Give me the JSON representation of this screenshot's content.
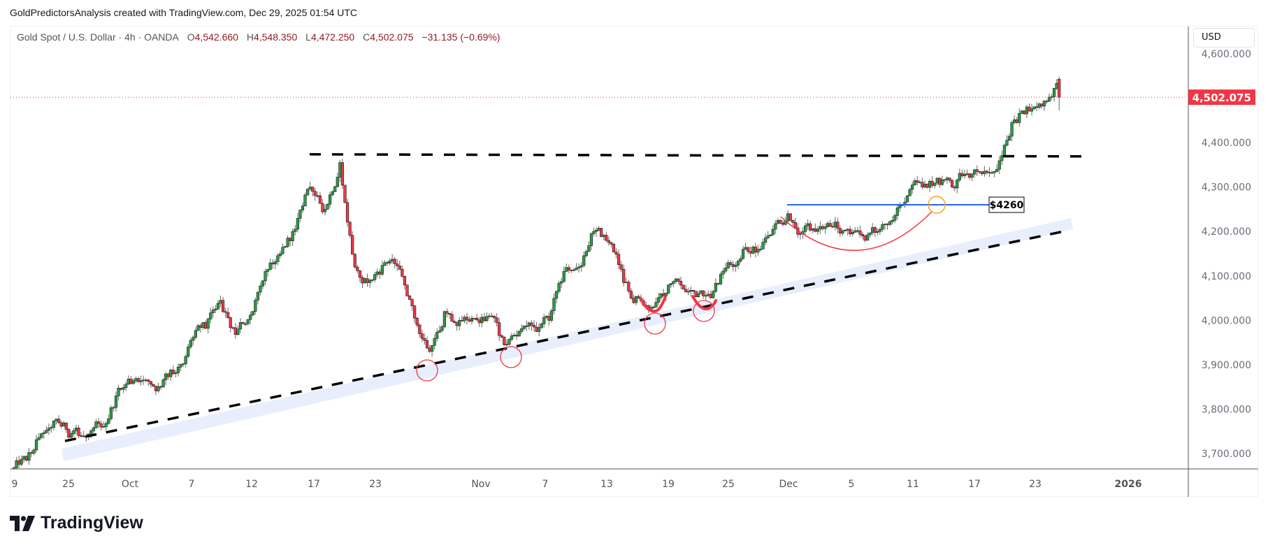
{
  "credit": "GoldPredictorsAnalysis created with TradingView.com, Dec 29, 2025 01:54 UTC",
  "legend": {
    "symbol": "Gold Spot / U.S. Dollar · 4h · OANDA",
    "o_label": "O",
    "open": "4,542.660",
    "h_label": "H",
    "high": "4,548.350",
    "l_label": "L",
    "low": "4,472.250",
    "c_label": "C",
    "close": "4,502.075",
    "change": "−31.135 (−0.69%)"
  },
  "currency": "USD",
  "brand": "TradingView",
  "colors": {
    "up": "#2a9d45",
    "down": "#f23645",
    "price_label": "#f23645",
    "level_line": "#2962ff",
    "circle": "#f23645",
    "breakout_circle": "#f5a623",
    "trend_band": "#e8eefc"
  },
  "chart_data": {
    "type": "candlestick",
    "timeframe": "4h",
    "ylim": [
      3660,
      4620
    ],
    "y_ticks": [
      "4,600.000",
      "4,400.000",
      "4,300.000",
      "4,200.000",
      "4,100.000",
      "4,000.000",
      "3,900.000",
      "3,800.000",
      "3,700.000"
    ],
    "x_ticks": [
      "9",
      "25",
      "Oct",
      "7",
      "12",
      "17",
      "23",
      "Nov",
      "7",
      "13",
      "19",
      "25",
      "Dec",
      "5",
      "11",
      "17",
      "23",
      "2026"
    ],
    "current_price": 4502.075,
    "current_price_label": "4,502.075",
    "daily_closes": [
      [
        "2025-09-19",
        3685
      ],
      [
        "2025-09-22",
        3745
      ],
      [
        "2025-09-23",
        3778
      ],
      [
        "2025-09-24",
        3745
      ],
      [
        "2025-09-25",
        3738
      ],
      [
        "2025-09-26",
        3760
      ],
      [
        "2025-09-29",
        3830
      ],
      [
        "2025-09-30",
        3858
      ],
      [
        "2025-10-01",
        3866
      ],
      [
        "2025-10-02",
        3850
      ],
      [
        "2025-10-03",
        3882
      ],
      [
        "2025-10-06",
        3955
      ],
      [
        "2025-10-07",
        3982
      ],
      [
        "2025-10-08",
        4045
      ],
      [
        "2025-10-09",
        3968
      ],
      [
        "2025-10-10",
        4012
      ],
      [
        "2025-10-13",
        4110
      ],
      [
        "2025-10-14",
        4150
      ],
      [
        "2025-10-15",
        4205
      ],
      [
        "2025-10-16",
        4300
      ],
      [
        "2025-10-17",
        4250
      ],
      [
        "2025-10-20",
        4355
      ],
      [
        "2025-10-21",
        4120
      ],
      [
        "2025-10-22",
        4090
      ],
      [
        "2025-10-23",
        4130
      ],
      [
        "2025-10-24",
        4115
      ],
      [
        "2025-10-27",
        4005
      ],
      [
        "2025-10-28",
        3930
      ],
      [
        "2025-10-29",
        4020
      ],
      [
        "2025-10-30",
        4000
      ],
      [
        "2025-10-31",
        4005
      ],
      [
        "2025-11-03",
        4010
      ],
      [
        "2025-11-04",
        3945
      ],
      [
        "2025-11-05",
        3975
      ],
      [
        "2025-11-06",
        3985
      ],
      [
        "2025-11-07",
        4000
      ],
      [
        "2025-11-10",
        4110
      ],
      [
        "2025-11-11",
        4120
      ],
      [
        "2025-11-12",
        4200
      ],
      [
        "2025-11-13",
        4175
      ],
      [
        "2025-11-14",
        4085
      ],
      [
        "2025-11-17",
        4050
      ],
      [
        "2025-11-18",
        4030
      ],
      [
        "2025-11-19",
        4080
      ],
      [
        "2025-11-20",
        4070
      ],
      [
        "2025-11-21",
        4060
      ],
      [
        "2025-11-24",
        4065
      ],
      [
        "2025-11-25",
        4130
      ],
      [
        "2025-11-26",
        4160
      ],
      [
        "2025-11-27",
        4160
      ],
      [
        "2025-11-28",
        4205
      ],
      [
        "2025-12-01",
        4240
      ],
      [
        "2025-12-02",
        4200
      ],
      [
        "2025-12-03",
        4205
      ],
      [
        "2025-12-04",
        4210
      ],
      [
        "2025-12-05",
        4205
      ],
      [
        "2025-12-08",
        4190
      ],
      [
        "2025-12-09",
        4200
      ],
      [
        "2025-12-10",
        4225
      ],
      [
        "2025-12-11",
        4280
      ],
      [
        "2025-12-12",
        4300
      ],
      [
        "2025-12-15",
        4320
      ],
      [
        "2025-12-16",
        4300
      ],
      [
        "2025-12-17",
        4330
      ],
      [
        "2025-12-18",
        4330
      ],
      [
        "2025-12-19",
        4340
      ],
      [
        "2025-12-22",
        4445
      ],
      [
        "2025-12-23",
        4480
      ],
      [
        "2025-12-24",
        4482
      ],
      [
        "2025-12-26",
        4533.21
      ],
      [
        "2025-12-29",
        4502.075
      ]
    ],
    "annotations": {
      "resistance_level": 4372,
      "support_level_label": "$4260",
      "support_level": 4260,
      "rising_trendline": "dashed",
      "touch_circles": 4,
      "cup_pattern": true
    }
  }
}
